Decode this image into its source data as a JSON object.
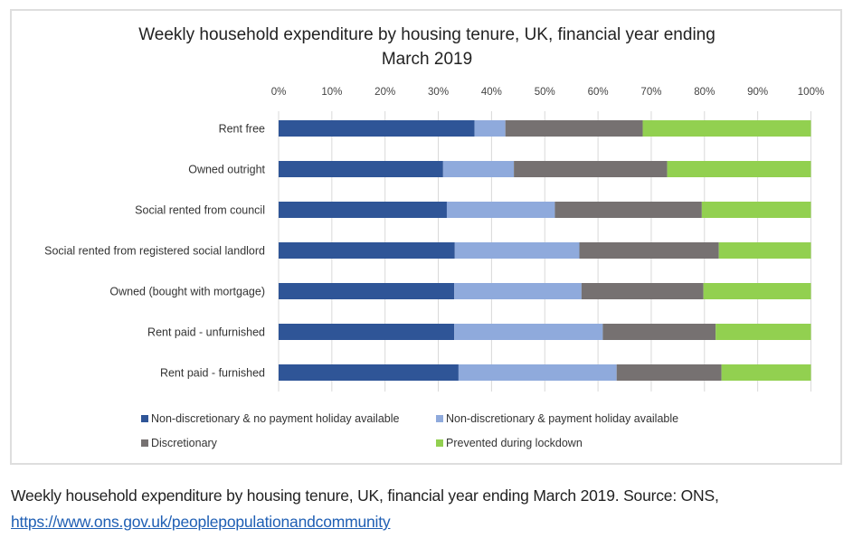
{
  "chart_data": {
    "type": "bar",
    "orientation": "horizontal",
    "stacked": "percent",
    "title": "Weekly household expenditure by housing tenure, UK, financial year ending March 2019",
    "title_lines": [
      "Weekly household expenditure by housing tenure, UK, financial year ending",
      "March 2019"
    ],
    "xlabel": "",
    "ylabel": "",
    "xlim": [
      0,
      100
    ],
    "x_ticks": [
      "0%",
      "10%",
      "20%",
      "30%",
      "40%",
      "50%",
      "60%",
      "70%",
      "80%",
      "90%",
      "100%"
    ],
    "x_axis_position": "top",
    "grid": true,
    "legend_position": "bottom",
    "categories": [
      "Rent free",
      "Owned outright",
      "Social rented from council",
      "Social rented from registered social landlord",
      "Owned (bought with mortgage)",
      "Rent paid - unfurnished",
      "Rent paid - furnished"
    ],
    "series": [
      {
        "name": "Non-discretionary & no payment holiday available",
        "color": "#2F5597",
        "values": [
          36.8,
          30.9,
          31.6,
          33.1,
          33.0,
          33.0,
          33.8
        ]
      },
      {
        "name": "Non-discretionary & payment holiday available",
        "color": "#8FAADC",
        "values": [
          5.8,
          13.3,
          20.3,
          23.4,
          23.9,
          27.9,
          29.7
        ]
      },
      {
        "name": "Discretionary",
        "color": "#767171",
        "values": [
          25.8,
          28.8,
          27.6,
          26.2,
          22.9,
          21.2,
          19.7
        ]
      },
      {
        "name": "Prevented during lockdown",
        "color": "#92D050",
        "values": [
          31.6,
          27.0,
          20.5,
          17.3,
          20.2,
          17.9,
          16.8
        ]
      }
    ]
  },
  "caption": {
    "text": "Weekly household expenditure by housing tenure, UK, financial year ending March 2019. Source: ONS,",
    "link": "https://www.ons.gov.uk/peoplepopulationandcommunity"
  }
}
